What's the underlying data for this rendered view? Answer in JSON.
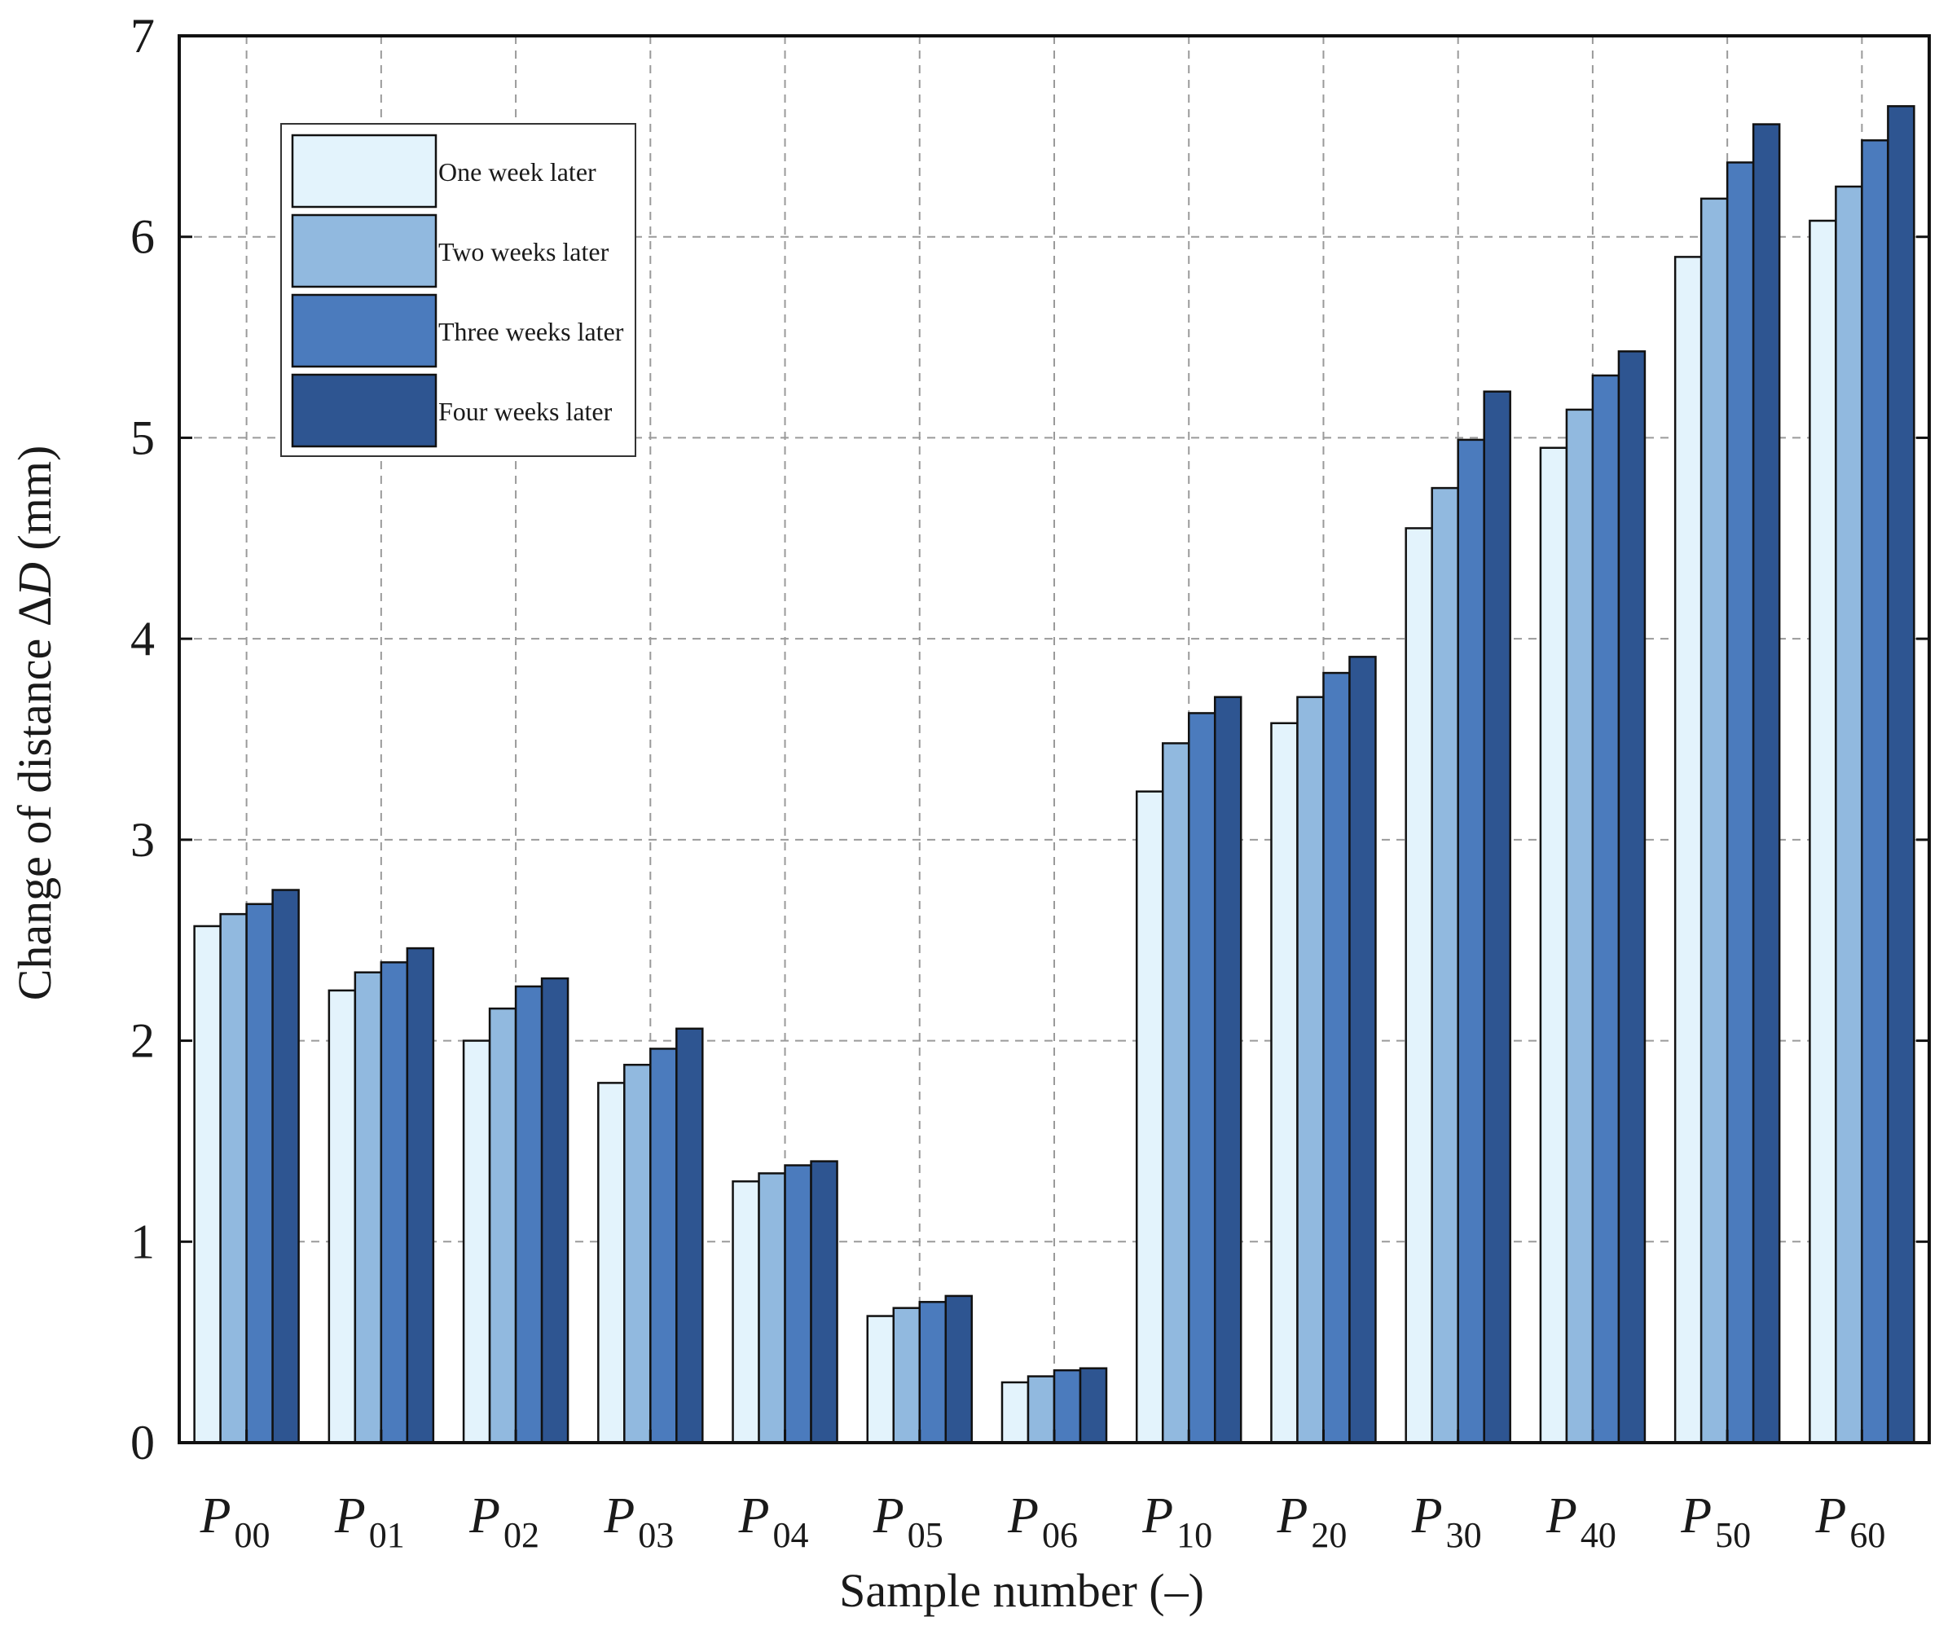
{
  "chart_data": {
    "type": "bar",
    "title": "",
    "xlabel": "Sample number (–)",
    "ylabel": {
      "prefix": "Change of distance Δ",
      "symbol": "D",
      "suffix": " (mm)"
    },
    "ylim": [
      0,
      7
    ],
    "yticks": [
      0,
      1,
      2,
      3,
      4,
      5,
      6,
      7
    ],
    "grid": true,
    "legend_position": "top-left",
    "categories": [
      {
        "base": "P",
        "sub": "00"
      },
      {
        "base": "P",
        "sub": "01"
      },
      {
        "base": "P",
        "sub": "02"
      },
      {
        "base": "P",
        "sub": "03"
      },
      {
        "base": "P",
        "sub": "04"
      },
      {
        "base": "P",
        "sub": "05"
      },
      {
        "base": "P",
        "sub": "06"
      },
      {
        "base": "P",
        "sub": "10"
      },
      {
        "base": "P",
        "sub": "20"
      },
      {
        "base": "P",
        "sub": "30"
      },
      {
        "base": "P",
        "sub": "40"
      },
      {
        "base": "P",
        "sub": "50"
      },
      {
        "base": "P",
        "sub": "60"
      }
    ],
    "series": [
      {
        "name": "One week later",
        "color": "#e3f3fc",
        "values": [
          2.57,
          2.25,
          2.0,
          1.79,
          1.3,
          0.63,
          0.3,
          3.24,
          3.58,
          4.55,
          4.95,
          5.9,
          6.08
        ]
      },
      {
        "name": "Two weeks later",
        "color": "#91b9df",
        "values": [
          2.63,
          2.34,
          2.16,
          1.88,
          1.34,
          0.67,
          0.33,
          3.48,
          3.71,
          4.75,
          5.14,
          6.19,
          6.25
        ]
      },
      {
        "name": "Three weeks later",
        "color": "#4b7bbd",
        "values": [
          2.68,
          2.39,
          2.27,
          1.96,
          1.38,
          0.7,
          0.36,
          3.63,
          3.83,
          4.99,
          5.31,
          6.37,
          6.48
        ]
      },
      {
        "name": "Four weeks later",
        "color": "#2e5591",
        "values": [
          2.75,
          2.46,
          2.31,
          2.06,
          1.4,
          0.73,
          0.37,
          3.71,
          3.91,
          5.23,
          5.43,
          6.56,
          6.65
        ]
      }
    ]
  }
}
